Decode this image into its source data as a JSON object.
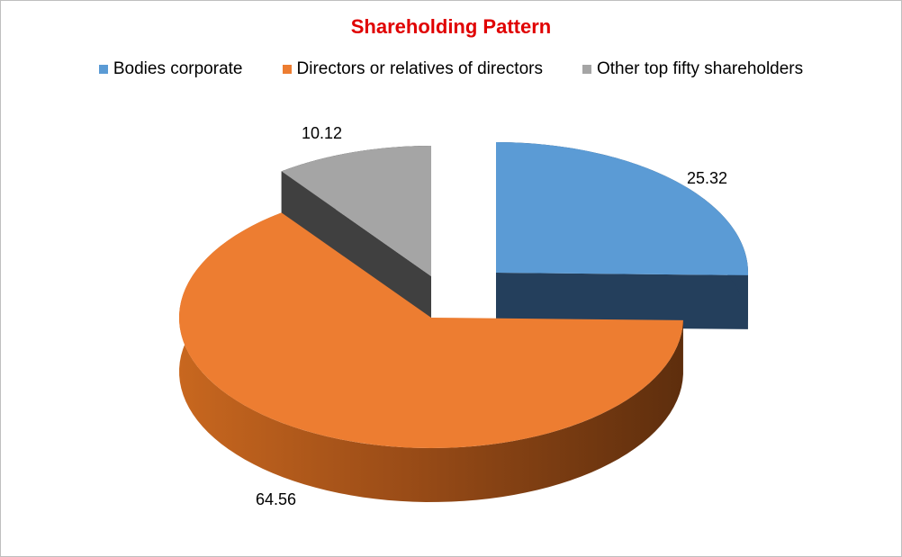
{
  "chart_data": {
    "type": "pie",
    "title": "Shareholding Pattern",
    "legend_position": "top",
    "series": [
      {
        "name": "Bodies corporate",
        "value": 25.32,
        "color": "#5b9bd5",
        "side_color": "#243f5c"
      },
      {
        "name": "Directors or relatives of directors",
        "value": 64.56,
        "color": "#ed7d31",
        "side_color": "#7a3d12"
      },
      {
        "name": "Other top fifty shareholders",
        "value": 10.12,
        "color": "#a5a5a5",
        "side_color": "#404040"
      }
    ],
    "labels": [
      "25.32",
      "64.56",
      "10.12"
    ]
  }
}
